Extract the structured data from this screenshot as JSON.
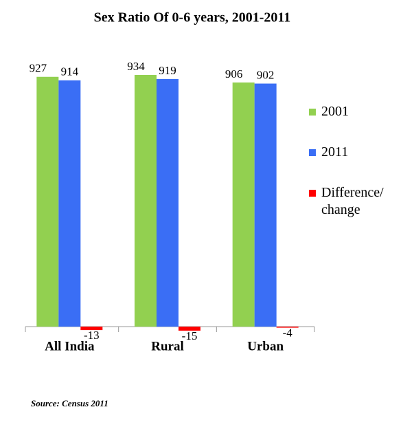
{
  "chart_data": {
    "type": "bar",
    "title": "Sex Ratio Of 0-6 years, 2001-2011",
    "categories": [
      "All India",
      "Rural",
      "Urban"
    ],
    "series": [
      {
        "name": "2001",
        "color": "#92d050",
        "values": [
          927,
          934,
          906
        ]
      },
      {
        "name": "2011",
        "color": "#3a6ef5",
        "values": [
          914,
          919,
          902
        ]
      },
      {
        "name": "Difference/ change",
        "color": "#ff0000",
        "values": [
          -13,
          -15,
          -4
        ]
      }
    ],
    "legend": "right",
    "data_labels": true,
    "source": "Source: Census 2011"
  }
}
